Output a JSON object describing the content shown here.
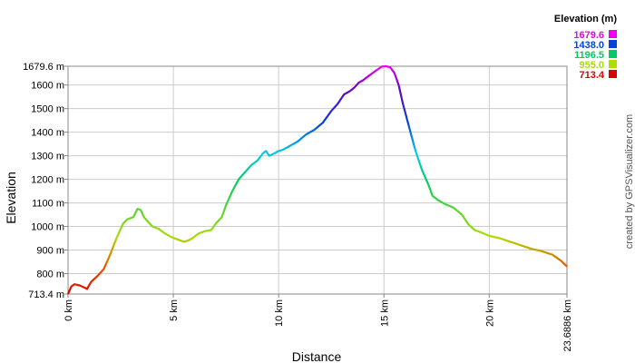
{
  "chart_data": {
    "type": "line",
    "title": "",
    "xlabel": "Distance",
    "ylabel": "Elevation",
    "x_unit": "km",
    "y_unit": "m",
    "xlim": [
      0,
      23.6886
    ],
    "ylim": [
      713.4,
      1679.6
    ],
    "grid": true,
    "x_ticks": [
      {
        "value": 0,
        "label": "0 km"
      },
      {
        "value": 5,
        "label": "5 km"
      },
      {
        "value": 10,
        "label": "10 km"
      },
      {
        "value": 15,
        "label": "15 km"
      },
      {
        "value": 20,
        "label": "20 km"
      },
      {
        "value": 23.6886,
        "label": "23.6886 km"
      }
    ],
    "y_ticks": [
      {
        "value": 713.4,
        "label": "713.4 m"
      },
      {
        "value": 800,
        "label": "800 m"
      },
      {
        "value": 900,
        "label": "900 m"
      },
      {
        "value": 1000,
        "label": "1000 m"
      },
      {
        "value": 1100,
        "label": "1100 m"
      },
      {
        "value": 1200,
        "label": "1200 m"
      },
      {
        "value": 1300,
        "label": "1300 m"
      },
      {
        "value": 1400,
        "label": "1400 m"
      },
      {
        "value": 1500,
        "label": "1500 m"
      },
      {
        "value": 1600,
        "label": "1600 m"
      },
      {
        "value": 1679.6,
        "label": "1679.6 m"
      }
    ],
    "legend": {
      "title": "Elevation (m)",
      "placement": "top-right",
      "entries": [
        {
          "label": "1679.6",
          "color": "#ee00ee"
        },
        {
          "label": "1438.0",
          "color": "#0044dd"
        },
        {
          "label": "1196.5",
          "color": "#00cc66"
        },
        {
          "label": "955.0",
          "color": "#aadd00"
        },
        {
          "label": "713.4",
          "color": "#dd0000"
        }
      ]
    },
    "series": [
      {
        "x": [
          0,
          0.15,
          0.3,
          0.55,
          0.8,
          0.9,
          1.1,
          1.4,
          1.7,
          2.0,
          2.3,
          2.6,
          2.8,
          3.1,
          3.3,
          3.45,
          3.6,
          3.8,
          4.0,
          4.3,
          4.6,
          4.9,
          5.2,
          5.5,
          5.7,
          5.9,
          6.2,
          6.5,
          6.8,
          7.0,
          7.3,
          7.5,
          7.8,
          8.1,
          8.4,
          8.7,
          9.0,
          9.25,
          9.4,
          9.55,
          9.8,
          10.0,
          10.2,
          10.5,
          10.9,
          11.3,
          11.7,
          12.1,
          12.5,
          12.8,
          13.1,
          13.4,
          13.6,
          13.8,
          14.0,
          14.3,
          14.6,
          14.9,
          15.1,
          15.3,
          15.5,
          15.7,
          15.9,
          16.2,
          16.5,
          16.8,
          17.1,
          17.3,
          17.6,
          17.9,
          18.3,
          18.7,
          19.0,
          19.3,
          19.6,
          20.0,
          20.5,
          21.0,
          21.5,
          22.0,
          22.5,
          23.0,
          23.4,
          23.6886
        ],
        "y": [
          713.4,
          745,
          755,
          750,
          740,
          735,
          765,
          790,
          820,
          880,
          950,
          1010,
          1030,
          1040,
          1075,
          1070,
          1040,
          1020,
          1000,
          990,
          970,
          955,
          945,
          935,
          940,
          950,
          970,
          980,
          985,
          1010,
          1040,
          1090,
          1150,
          1200,
          1230,
          1260,
          1280,
          1310,
          1320,
          1300,
          1310,
          1320,
          1325,
          1340,
          1360,
          1390,
          1410,
          1440,
          1490,
          1520,
          1560,
          1575,
          1590,
          1610,
          1620,
          1640,
          1660,
          1678,
          1679.6,
          1675,
          1650,
          1600,
          1520,
          1420,
          1320,
          1240,
          1180,
          1130,
          1110,
          1095,
          1080,
          1050,
          1010,
          985,
          975,
          960,
          950,
          935,
          920,
          905,
          895,
          880,
          855,
          830
        ]
      }
    ]
  },
  "credit": "created by GPSVisualizer.com"
}
